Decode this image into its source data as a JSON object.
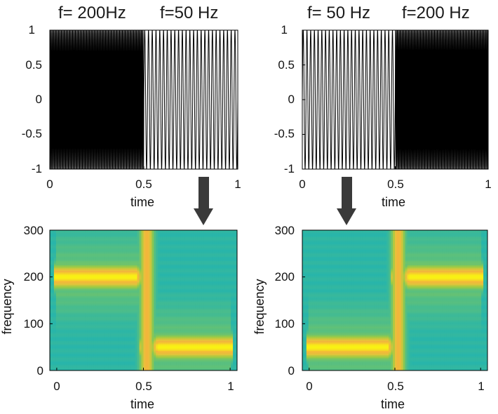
{
  "chart_data": [
    {
      "type": "line",
      "panel": "top-left",
      "titles": [
        "f= 200Hz",
        "f=50 Hz"
      ],
      "xlabel": "time",
      "ylabel": "",
      "xlim": [
        0,
        1
      ],
      "ylim": [
        -1,
        1
      ],
      "x_ticks": [
        "0",
        "0.5",
        "1"
      ],
      "y_ticks": [
        "1",
        "0.5",
        "0",
        "-0.5",
        "-1"
      ],
      "segments": [
        {
          "x": [
            0,
            0.5
          ],
          "frequency_hz": 200,
          "amplitude": 1
        },
        {
          "x": [
            0.5,
            1
          ],
          "frequency_hz": 50,
          "amplitude": 1
        }
      ]
    },
    {
      "type": "line",
      "panel": "top-right",
      "titles": [
        "f= 50 Hz",
        "f=200 Hz"
      ],
      "xlabel": "time",
      "ylabel": "",
      "xlim": [
        0,
        1
      ],
      "ylim": [
        -1,
        1
      ],
      "x_ticks": [
        "0",
        "0.5",
        "1"
      ],
      "y_ticks": [
        "1",
        "0.5",
        "0",
        "-0.5",
        "-1"
      ],
      "segments": [
        {
          "x": [
            0,
            0.5
          ],
          "frequency_hz": 50,
          "amplitude": 1
        },
        {
          "x": [
            0.5,
            1
          ],
          "frequency_hz": 200,
          "amplitude": 1
        }
      ]
    },
    {
      "type": "heatmap",
      "panel": "bottom-left",
      "xlabel": "time",
      "ylabel": "frequency",
      "xlim": [
        -0.04,
        1.04
      ],
      "ylim": [
        0,
        300
      ],
      "x_ticks": [
        "0",
        "0.5",
        "1"
      ],
      "y_ticks": [
        "300",
        "200",
        "100",
        "0"
      ],
      "ridges": [
        {
          "time_range": [
            0,
            0.5
          ],
          "frequency": 200
        },
        {
          "time_range": [
            0.5,
            1
          ],
          "frequency": 50
        }
      ],
      "transition_time": 0.52
    },
    {
      "type": "heatmap",
      "panel": "bottom-right",
      "xlabel": "time",
      "ylabel": "frequency",
      "xlim": [
        -0.04,
        1.04
      ],
      "ylim": [
        0,
        300
      ],
      "x_ticks": [
        "0",
        "0.5",
        "1"
      ],
      "y_ticks": [
        "300",
        "200",
        "100",
        "0"
      ],
      "ridges": [
        {
          "time_range": [
            0,
            0.5
          ],
          "frequency": 50
        },
        {
          "time_range": [
            0.5,
            1
          ],
          "frequency": 200
        }
      ],
      "transition_time": 0.52
    }
  ],
  "colors": {
    "background": "#1fb3b2",
    "mid": "#8cc84a",
    "ridge": "#f8f213",
    "edge": "#f0b43b",
    "arrow": "#3a3a3a",
    "signal": "#000000"
  }
}
